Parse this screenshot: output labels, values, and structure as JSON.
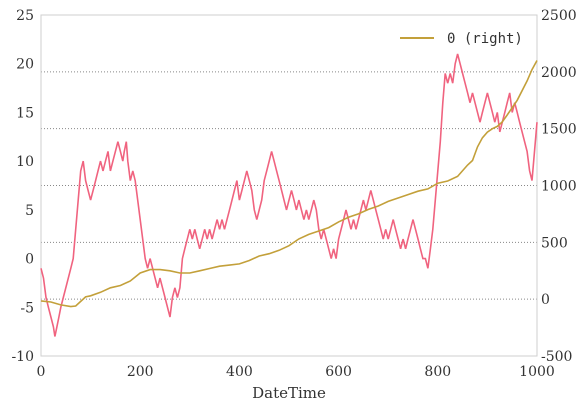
{
  "chart_data": {
    "type": "line",
    "xlabel": "DateTime",
    "xlim": [
      0,
      1000
    ],
    "ylim_left": [
      -10,
      25
    ],
    "ylim_right": [
      -500,
      2500
    ],
    "x_ticks": [
      "0",
      "200",
      "400",
      "600",
      "800",
      "1000"
    ],
    "y_left_ticks": [
      "-10",
      "-5",
      "0",
      "5",
      "10",
      "15",
      "20",
      "25"
    ],
    "y_right_ticks": [
      "-500",
      "0",
      "500",
      "1000",
      "1500",
      "2000",
      "2500"
    ],
    "grid": "right-axis horizontal dotted",
    "legend_position": "top-right",
    "series": [
      {
        "axis": "left",
        "color": "#f0637f",
        "points": [
          [
            0,
            -1
          ],
          [
            5,
            -2
          ],
          [
            10,
            -4
          ],
          [
            15,
            -5
          ],
          [
            20,
            -6
          ],
          [
            25,
            -7
          ],
          [
            28,
            -8
          ],
          [
            32,
            -7
          ],
          [
            36,
            -6
          ],
          [
            40,
            -5
          ],
          [
            45,
            -4
          ],
          [
            50,
            -3
          ],
          [
            55,
            -2
          ],
          [
            60,
            -1
          ],
          [
            65,
            0
          ],
          [
            70,
            3
          ],
          [
            75,
            6
          ],
          [
            80,
            9
          ],
          [
            85,
            10
          ],
          [
            90,
            8
          ],
          [
            95,
            7
          ],
          [
            100,
            6
          ],
          [
            105,
            7
          ],
          [
            110,
            8
          ],
          [
            115,
            9
          ],
          [
            120,
            10
          ],
          [
            125,
            9
          ],
          [
            130,
            10
          ],
          [
            135,
            11
          ],
          [
            140,
            9
          ],
          [
            145,
            10
          ],
          [
            150,
            11
          ],
          [
            155,
            12
          ],
          [
            160,
            11
          ],
          [
            165,
            10
          ],
          [
            168,
            11
          ],
          [
            172,
            12
          ],
          [
            175,
            10
          ],
          [
            180,
            8
          ],
          [
            185,
            9
          ],
          [
            190,
            8
          ],
          [
            195,
            6
          ],
          [
            200,
            4
          ],
          [
            205,
            2
          ],
          [
            210,
            0
          ],
          [
            215,
            -1
          ],
          [
            220,
            0
          ],
          [
            225,
            -1
          ],
          [
            230,
            -2
          ],
          [
            235,
            -3
          ],
          [
            240,
            -2
          ],
          [
            245,
            -3
          ],
          [
            250,
            -4
          ],
          [
            255,
            -5
          ],
          [
            260,
            -6
          ],
          [
            265,
            -4
          ],
          [
            270,
            -3
          ],
          [
            275,
            -4
          ],
          [
            280,
            -3
          ],
          [
            285,
            0
          ],
          [
            290,
            1
          ],
          [
            295,
            2
          ],
          [
            300,
            3
          ],
          [
            305,
            2
          ],
          [
            310,
            3
          ],
          [
            315,
            2
          ],
          [
            320,
            1
          ],
          [
            325,
            2
          ],
          [
            330,
            3
          ],
          [
            335,
            2
          ],
          [
            340,
            3
          ],
          [
            345,
            2
          ],
          [
            350,
            3
          ],
          [
            355,
            4
          ],
          [
            360,
            3
          ],
          [
            365,
            4
          ],
          [
            370,
            3
          ],
          [
            375,
            4
          ],
          [
            380,
            5
          ],
          [
            385,
            6
          ],
          [
            390,
            7
          ],
          [
            395,
            8
          ],
          [
            400,
            6
          ],
          [
            405,
            7
          ],
          [
            410,
            8
          ],
          [
            415,
            9
          ],
          [
            420,
            8
          ],
          [
            425,
            7
          ],
          [
            430,
            5
          ],
          [
            435,
            4
          ],
          [
            440,
            5
          ],
          [
            445,
            6
          ],
          [
            450,
            8
          ],
          [
            455,
            9
          ],
          [
            460,
            10
          ],
          [
            465,
            11
          ],
          [
            470,
            10
          ],
          [
            475,
            9
          ],
          [
            480,
            8
          ],
          [
            485,
            7
          ],
          [
            490,
            6
          ],
          [
            495,
            5
          ],
          [
            500,
            6
          ],
          [
            505,
            7
          ],
          [
            510,
            6
          ],
          [
            515,
            5
          ],
          [
            520,
            6
          ],
          [
            525,
            5
          ],
          [
            530,
            4
          ],
          [
            535,
            5
          ],
          [
            540,
            4
          ],
          [
            545,
            5
          ],
          [
            550,
            6
          ],
          [
            555,
            5
          ],
          [
            560,
            3
          ],
          [
            565,
            2
          ],
          [
            570,
            3
          ],
          [
            575,
            2
          ],
          [
            580,
            1
          ],
          [
            585,
            0
          ],
          [
            590,
            1
          ],
          [
            595,
            0
          ],
          [
            600,
            2
          ],
          [
            605,
            3
          ],
          [
            610,
            4
          ],
          [
            615,
            5
          ],
          [
            620,
            4
          ],
          [
            625,
            3
          ],
          [
            630,
            4
          ],
          [
            635,
            3
          ],
          [
            640,
            4
          ],
          [
            645,
            5
          ],
          [
            650,
            6
          ],
          [
            655,
            5
          ],
          [
            660,
            6
          ],
          [
            665,
            7
          ],
          [
            670,
            6
          ],
          [
            675,
            5
          ],
          [
            680,
            4
          ],
          [
            685,
            3
          ],
          [
            690,
            2
          ],
          [
            695,
            3
          ],
          [
            700,
            2
          ],
          [
            705,
            3
          ],
          [
            710,
            4
          ],
          [
            715,
            3
          ],
          [
            720,
            2
          ],
          [
            725,
            1
          ],
          [
            730,
            2
          ],
          [
            735,
            1
          ],
          [
            740,
            2
          ],
          [
            745,
            3
          ],
          [
            750,
            4
          ],
          [
            755,
            3
          ],
          [
            760,
            2
          ],
          [
            765,
            1
          ],
          [
            770,
            0
          ],
          [
            775,
            0
          ],
          [
            780,
            -1
          ],
          [
            785,
            1
          ],
          [
            790,
            3
          ],
          [
            795,
            6
          ],
          [
            800,
            9
          ],
          [
            805,
            12
          ],
          [
            810,
            16
          ],
          [
            815,
            19
          ],
          [
            820,
            18
          ],
          [
            825,
            19
          ],
          [
            830,
            18
          ],
          [
            835,
            20
          ],
          [
            840,
            21
          ],
          [
            845,
            20
          ],
          [
            850,
            19
          ],
          [
            855,
            18
          ],
          [
            860,
            17
          ],
          [
            865,
            16
          ],
          [
            870,
            17
          ],
          [
            875,
            16
          ],
          [
            880,
            15
          ],
          [
            885,
            14
          ],
          [
            890,
            15
          ],
          [
            895,
            16
          ],
          [
            900,
            17
          ],
          [
            905,
            16
          ],
          [
            910,
            15
          ],
          [
            915,
            14
          ],
          [
            920,
            15
          ],
          [
            925,
            13
          ],
          [
            930,
            14
          ],
          [
            935,
            15
          ],
          [
            940,
            16
          ],
          [
            945,
            17
          ],
          [
            950,
            15
          ],
          [
            955,
            16
          ],
          [
            960,
            15
          ],
          [
            965,
            14
          ],
          [
            970,
            13
          ],
          [
            975,
            12
          ],
          [
            980,
            11
          ],
          [
            985,
            9
          ],
          [
            990,
            8
          ],
          [
            995,
            11
          ],
          [
            1000,
            14
          ]
        ]
      },
      {
        "axis": "right",
        "name": "0 (right)",
        "color": "#c3a03a",
        "points": [
          [
            0,
            -15
          ],
          [
            20,
            -25
          ],
          [
            40,
            -50
          ],
          [
            60,
            -65
          ],
          [
            70,
            -60
          ],
          [
            80,
            -20
          ],
          [
            90,
            20
          ],
          [
            100,
            30
          ],
          [
            120,
            60
          ],
          [
            140,
            100
          ],
          [
            160,
            120
          ],
          [
            180,
            160
          ],
          [
            200,
            230
          ],
          [
            220,
            260
          ],
          [
            240,
            260
          ],
          [
            260,
            250
          ],
          [
            280,
            230
          ],
          [
            300,
            230
          ],
          [
            320,
            250
          ],
          [
            340,
            270
          ],
          [
            360,
            290
          ],
          [
            380,
            300
          ],
          [
            400,
            310
          ],
          [
            420,
            340
          ],
          [
            440,
            380
          ],
          [
            460,
            400
          ],
          [
            480,
            430
          ],
          [
            500,
            470
          ],
          [
            520,
            530
          ],
          [
            540,
            570
          ],
          [
            560,
            600
          ],
          [
            580,
            630
          ],
          [
            600,
            680
          ],
          [
            620,
            720
          ],
          [
            640,
            750
          ],
          [
            660,
            790
          ],
          [
            680,
            820
          ],
          [
            700,
            860
          ],
          [
            720,
            890
          ],
          [
            740,
            920
          ],
          [
            760,
            950
          ],
          [
            780,
            970
          ],
          [
            800,
            1020
          ],
          [
            820,
            1040
          ],
          [
            840,
            1080
          ],
          [
            860,
            1180
          ],
          [
            870,
            1220
          ],
          [
            880,
            1340
          ],
          [
            890,
            1420
          ],
          [
            900,
            1470
          ],
          [
            910,
            1500
          ],
          [
            920,
            1520
          ],
          [
            930,
            1560
          ],
          [
            940,
            1620
          ],
          [
            960,
            1750
          ],
          [
            980,
            1920
          ],
          [
            990,
            2020
          ],
          [
            1000,
            2100
          ]
        ]
      }
    ]
  }
}
